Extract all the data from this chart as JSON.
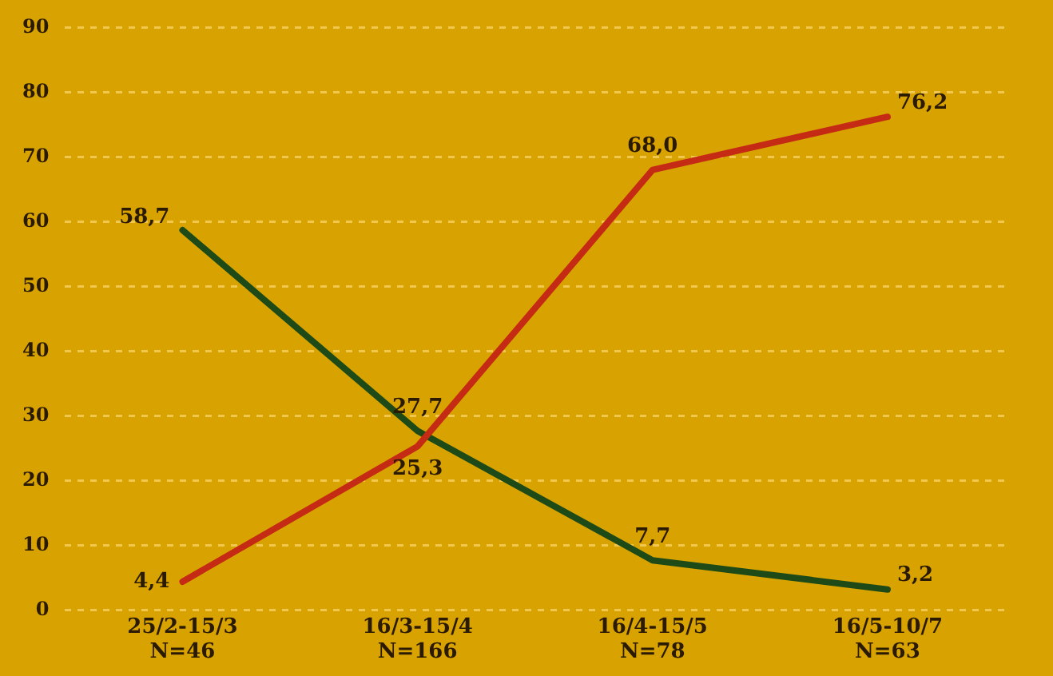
{
  "chart_data": {
    "type": "line",
    "categories": [
      "25/2-15/3\nN=46",
      "16/3-15/4\nN=166",
      "16/4-15/5\nN=78",
      "16/5-10/7\nN=63"
    ],
    "series": [
      {
        "color": "#c42a14",
        "values": [
          4.4,
          25.3,
          68.0,
          76.2
        ],
        "value_labels": [
          "4,4",
          "25,3",
          "68,0",
          "76,2"
        ]
      },
      {
        "color": "#1d4a17",
        "values": [
          58.7,
          27.7,
          7.7,
          3.2
        ],
        "value_labels": [
          "58,7",
          "27,7",
          "7,7",
          "3,2"
        ]
      }
    ],
    "ylim": [
      0,
      90
    ],
    "yticks": [
      0,
      10,
      20,
      30,
      40,
      50,
      60,
      70,
      80,
      90
    ],
    "grid": "y",
    "legend": false,
    "marker": "none",
    "line_style": "solid"
  }
}
